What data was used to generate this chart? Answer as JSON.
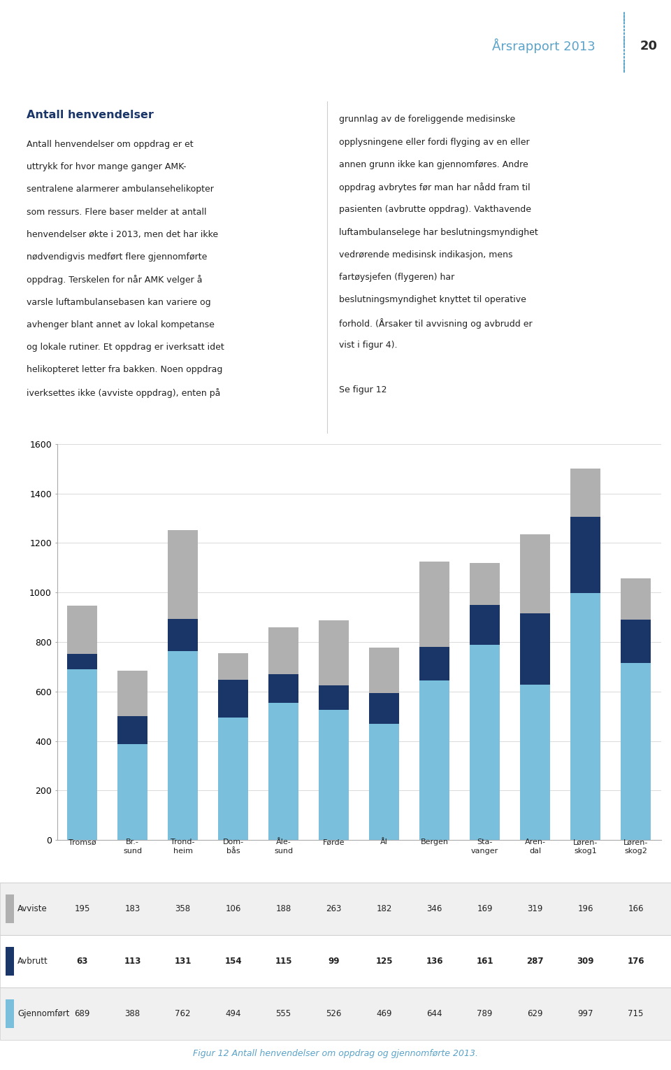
{
  "categories": [
    "Tromsø",
    "Br.-\nsund",
    "Trond-\nheim",
    "Dom-\nbås",
    "Åle-\nsund",
    "Førde",
    "Ål",
    "Bergen",
    "Sta-\nvanger",
    "Aren-\ndal",
    "Løren-\nskog1",
    "Løren-\nskog2"
  ],
  "avviste": [
    195,
    183,
    358,
    106,
    188,
    263,
    182,
    346,
    169,
    319,
    196,
    166
  ],
  "avbrutt": [
    63,
    113,
    131,
    154,
    115,
    99,
    125,
    136,
    161,
    287,
    309,
    176
  ],
  "gjennomfort": [
    689,
    388,
    762,
    494,
    555,
    526,
    469,
    644,
    789,
    629,
    997,
    715
  ],
  "color_avviste": "#b0b0b0",
  "color_avbrutt": "#1a3568",
  "color_gjennomfort": "#7abfdc",
  "ylim": [
    0,
    1600
  ],
  "yticks": [
    0,
    200,
    400,
    600,
    800,
    1000,
    1200,
    1400,
    1600
  ],
  "header_text": "Årsrapport 2013",
  "page_number": "20",
  "title_left": "Antall henvendelser",
  "body_left_lines": [
    "Antall henvendelser om oppdrag er et",
    "uttrykk for hvor mange ganger AMK-",
    "sentralene alarmerer ambulansehelikopter",
    "som ressurs. Flere baser melder at antall",
    "henvendelser økte i 2013, men det har ikke",
    "nødvendigvis medført flere gjennomførte",
    "oppdrag. Terskelen for når AMK velger å",
    "varsle luftambulansebasen kan variere og",
    "avhenger blant annet av lokal kompetanse",
    "og lokale rutiner. Et oppdrag er iverksatt idet",
    "helikopteret letter fra bakken. Noen oppdrag",
    "iverksettes ikke (avviste oppdrag), enten på"
  ],
  "body_right_lines": [
    "grunnlag av de foreliggende medisinske",
    "opplysningene eller fordi flyging av en eller",
    "annen grunn ikke kan gjennomføres. Andre",
    "oppdrag avbrytes før man har nådd fram til",
    "pasienten (avbrutte oppdrag). Vakthavende",
    "luftambulanselege har beslutningsmyndighet",
    "vedrørende medisinsk indikasjon, mens",
    "fartøysjefen (flygeren) har",
    "beslutningsmyndighet knyttet til operative",
    "forhold. (Årsaker til avvisning og avbrudd er",
    "vist i figur 4).",
    "",
    "Se figur 12"
  ],
  "caption": "Figur 12 Antall henvendelser om oppdrag og gjennomførte 2013.",
  "background_color": "#ffffff",
  "header_color": "#5ba3c9",
  "title_color": "#1a3568",
  "caption_color": "#5ba3c9",
  "bar_width": 0.6,
  "table_row_avviste": [
    195,
    183,
    358,
    106,
    188,
    263,
    182,
    346,
    169,
    319,
    196,
    166
  ],
  "table_row_avbrutt": [
    63,
    113,
    131,
    154,
    115,
    99,
    125,
    136,
    161,
    287,
    309,
    176
  ],
  "table_row_gjennomfort": [
    689,
    388,
    762,
    494,
    555,
    526,
    469,
    644,
    789,
    629,
    997,
    715
  ]
}
